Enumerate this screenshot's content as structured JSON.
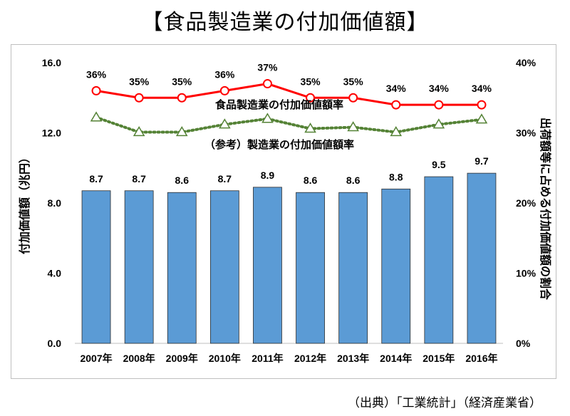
{
  "title": "【食品製造業の付加価値額】",
  "source": "（出典）「工業統計」（経済産業省）",
  "chart_data": {
    "type": "bar",
    "categories": [
      "2007年",
      "2008年",
      "2009年",
      "2010年",
      "2011年",
      "2012年",
      "2013年",
      "2014年",
      "2015年",
      "2016年"
    ],
    "bar_series": {
      "values": [
        8.7,
        8.7,
        8.6,
        8.7,
        8.9,
        8.6,
        8.6,
        8.8,
        9.5,
        9.7
      ],
      "labels": [
        "8.7",
        "8.7",
        "8.6",
        "8.7",
        "8.9",
        "8.6",
        "8.6",
        "8.8",
        "9.5",
        "9.7"
      ],
      "color": "#5b9bd5"
    },
    "line_series": [
      {
        "name": "食品製造業の付加価値額率",
        "values": [
          36,
          35,
          35,
          36,
          37,
          35,
          35,
          34,
          34,
          34
        ],
        "labels": [
          "36%",
          "35%",
          "35%",
          "36%",
          "37%",
          "35%",
          "35%",
          "34%",
          "34%",
          "34%"
        ],
        "color": "#ff0000",
        "style": "solid-circle"
      },
      {
        "name": "（参考）製造業の付加価値額率",
        "values": [
          32.2,
          30.1,
          30.1,
          31.2,
          32.0,
          30.6,
          30.8,
          30.1,
          31.2,
          31.9
        ],
        "color": "#548235",
        "style": "dotted-triangle"
      }
    ],
    "ylabel_left": "付加価値額（兆円）",
    "ylabel_right": "出荷額等に占める付加価値額の割合",
    "ylim_left": [
      0,
      16
    ],
    "yticks_left": [
      "0.0",
      "4.0",
      "8.0",
      "12.0",
      "16.0"
    ],
    "ylim_right": [
      0,
      40
    ],
    "yticks_right": [
      "0%",
      "10%",
      "20%",
      "30%",
      "40%"
    ],
    "grid": false
  }
}
